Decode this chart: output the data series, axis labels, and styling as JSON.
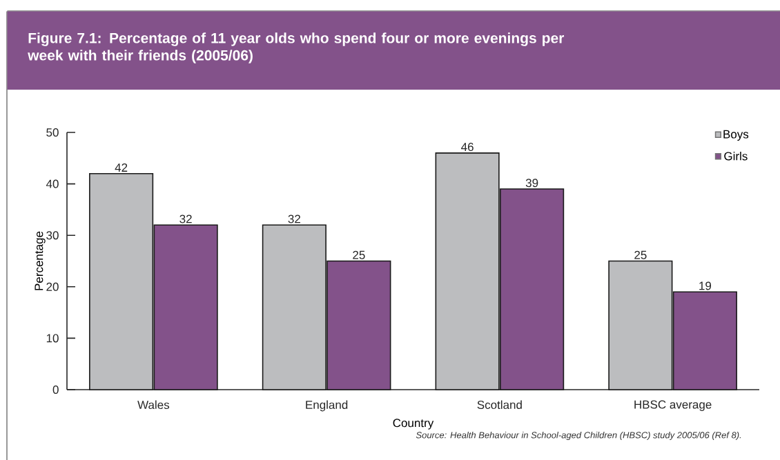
{
  "chart_data": {
    "type": "bar",
    "title": "Figure 7.1: Percentage of 11 year olds who spend four or more evenings per week with their friends (2005/06)",
    "xlabel": "Country",
    "ylabel": "Percentage",
    "categories": [
      "Wales",
      "England",
      "Scotland",
      "HBSC average"
    ],
    "series": [
      {
        "name": "Boys",
        "color": "#bcbdbf",
        "values": [
          42,
          32,
          46,
          25
        ]
      },
      {
        "name": "Girls",
        "color": "#83528a",
        "values": [
          32,
          25,
          39,
          19
        ]
      }
    ],
    "ylim": [
      0,
      50
    ],
    "yticks": [
      0,
      10,
      20,
      30,
      40,
      50
    ],
    "data_labels": true,
    "legend": "top right",
    "annotations": [
      "Source: Health Behaviour in School-aged Children (HBSC) study 2005/06 (Ref 8)."
    ]
  }
}
